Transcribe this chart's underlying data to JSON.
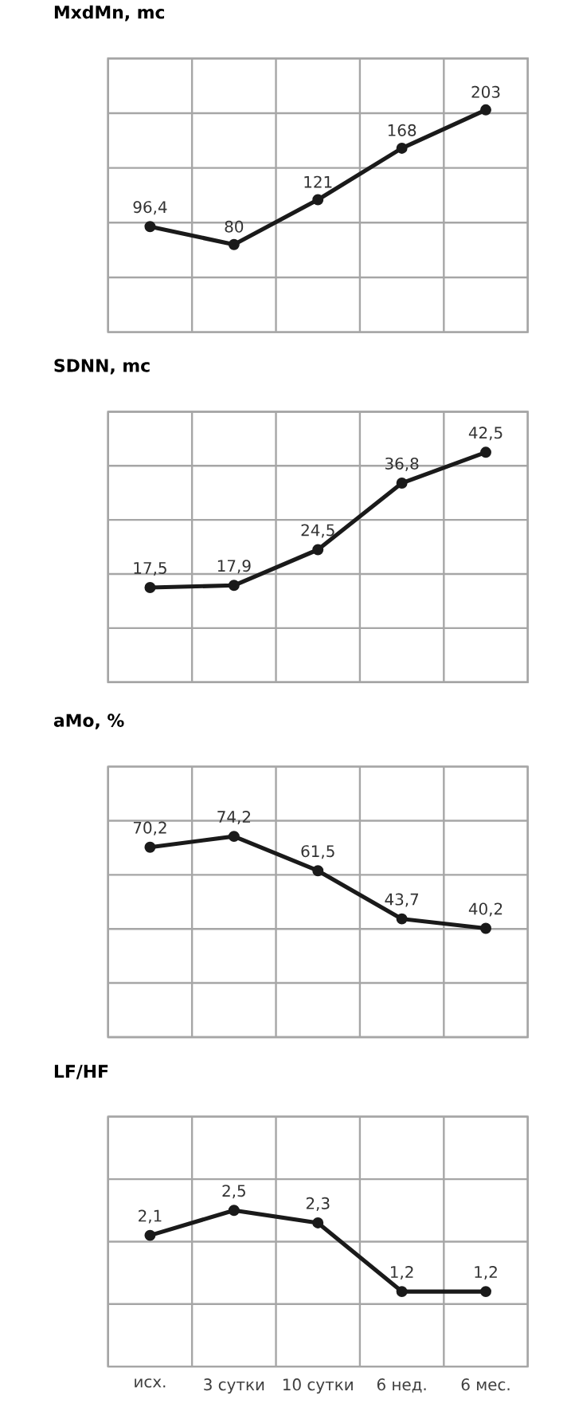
{
  "chart_data": [
    {
      "type": "line",
      "title": "MxdMn, mc",
      "categories": [
        null,
        null,
        null,
        null,
        null
      ],
      "values": [
        96.4,
        80,
        121,
        168,
        203
      ],
      "value_labels": [
        "96,4",
        "80",
        "121",
        "168",
        "203"
      ],
      "color": "#1a1a1a",
      "marker": "circle",
      "grid": true,
      "ylim": [
        0,
        250
      ],
      "yticks": [
        {
          "value": 0,
          "label": null
        },
        {
          "value": 50,
          "label": null
        },
        {
          "value": 100,
          "label": null
        },
        {
          "value": 150,
          "label": null
        },
        {
          "value": 200,
          "label": null
        },
        {
          "value": 250,
          "label": null
        }
      ],
      "tick_labels": false
    },
    {
      "type": "line",
      "title": "SDNN, mc",
      "categories": [
        null,
        null,
        null,
        null,
        null
      ],
      "values": [
        17.5,
        17.9,
        24.5,
        36.8,
        42.5
      ],
      "value_labels": [
        "17,5",
        "17,9",
        "24,5",
        "36,8",
        "42,5"
      ],
      "color": "#1a1a1a",
      "marker": "circle",
      "grid": true,
      "ylim": [
        0,
        50
      ],
      "yticks": [
        {
          "value": 0,
          "label": null
        },
        {
          "value": 10,
          "label": null
        },
        {
          "value": 20,
          "label": null
        },
        {
          "value": 30,
          "label": null
        },
        {
          "value": 40,
          "label": null
        },
        {
          "value": 50,
          "label": null
        }
      ],
      "tick_labels": false
    },
    {
      "type": "line",
      "title": "aMo, %",
      "categories": [
        null,
        null,
        null,
        null,
        null
      ],
      "values": [
        70.2,
        74.2,
        61.5,
        43.7,
        40.2
      ],
      "value_labels": [
        "70,2",
        "74,2",
        "61,5",
        "43,7",
        "40,2"
      ],
      "color": "#1a1a1a",
      "marker": "circle",
      "grid": true,
      "ylim": [
        0,
        100
      ],
      "yticks": [
        {
          "value": 0,
          "label": null
        },
        {
          "value": 20,
          "label": null
        },
        {
          "value": 40,
          "label": null
        },
        {
          "value": 60,
          "label": null
        },
        {
          "value": 80,
          "label": null
        },
        {
          "value": 100,
          "label": null
        }
      ],
      "tick_labels": false
    },
    {
      "type": "line",
      "title": "LF/HF",
      "categories": [
        "исх.",
        "3 сутки",
        "10 сутки",
        "6 нед.",
        "6 мес."
      ],
      "values": [
        2.1,
        2.5,
        2.3,
        1.2,
        1.2
      ],
      "value_labels": [
        "2,1",
        "2,5",
        "2,3",
        "1,2",
        "1,2"
      ],
      "color": "#1a1a1a",
      "marker": "circle",
      "grid": true,
      "ylim": [
        0,
        4
      ],
      "yticks": [
        {
          "value": 0,
          "label": null
        },
        {
          "value": 1,
          "label": null
        },
        {
          "value": 2,
          "label": null
        },
        {
          "value": 3,
          "label": null
        },
        {
          "value": 4,
          "label": null
        }
      ],
      "tick_labels": "x"
    }
  ]
}
